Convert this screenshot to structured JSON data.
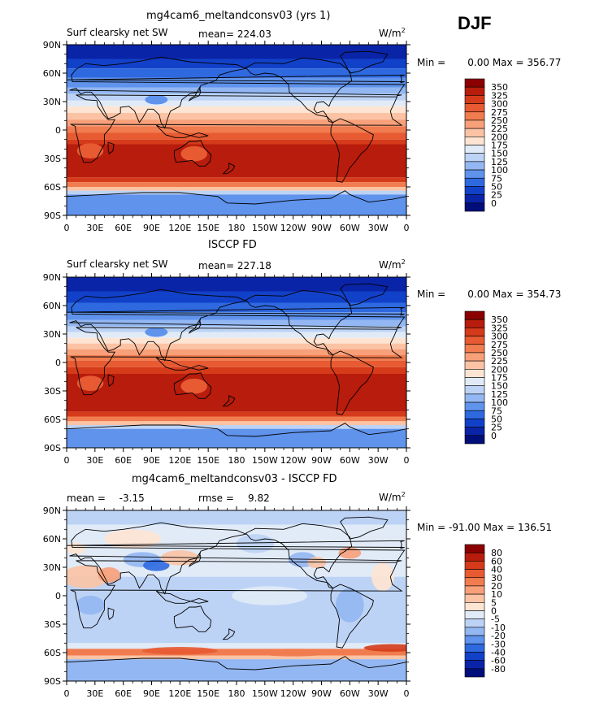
{
  "page": {
    "season": "DJF"
  },
  "panels": [
    {
      "title": "mg4cam6_meltandconsv03 (yrs 1)",
      "left_label": "Surf clearsky net SW",
      "stat_label": "mean=",
      "stat_value": "224.03",
      "units_base": "W/m",
      "units_sup": "2",
      "minmax_min_label": "Min =",
      "minmax_min": "0.00",
      "minmax_max_label": "Max =",
      "minmax_max": "356.77",
      "lat_labels": [
        "90N",
        "60N",
        "30N",
        "0",
        "30S",
        "60S",
        "90S"
      ],
      "lon_labels": [
        "0",
        "30E",
        "60E",
        "90E",
        "120E",
        "150E",
        "180",
        "150W",
        "120W",
        "90W",
        "60W",
        "30W",
        "0"
      ],
      "colorbar_labels": [
        "350",
        "325",
        "300",
        "275",
        "250",
        "225",
        "200",
        "175",
        "150",
        "125",
        "100",
        "75",
        "50",
        "25",
        "0"
      ],
      "colorbar_colors": [
        "#8b0000",
        "#b71c0c",
        "#d53b1a",
        "#e75a32",
        "#f07c4f",
        "#f7a07a",
        "#fbc3a4",
        "#fee4d2",
        "#e1ebf8",
        "#bdd3f5",
        "#93b7f2",
        "#5f93ec",
        "#2f69e0",
        "#1241c9",
        "#0a24a7",
        "#000e7a"
      ],
      "bands": [
        {
          "lat_from": 90,
          "lat_to": 75,
          "color": "#0a24a7"
        },
        {
          "lat_from": 75,
          "lat_to": 65,
          "color": "#1241c9"
        },
        {
          "lat_from": 65,
          "lat_to": 55,
          "color": "#2f69e0"
        },
        {
          "lat_from": 55,
          "lat_to": 45,
          "color": "#5f93ec"
        },
        {
          "lat_from": 45,
          "lat_to": 38,
          "color": "#93b7f2"
        },
        {
          "lat_from": 38,
          "lat_to": 31,
          "color": "#bdd3f5"
        },
        {
          "lat_from": 31,
          "lat_to": 25,
          "color": "#e1ebf8"
        },
        {
          "lat_from": 25,
          "lat_to": 18,
          "color": "#fee4d2"
        },
        {
          "lat_from": 18,
          "lat_to": 11,
          "color": "#fbc3a4"
        },
        {
          "lat_from": 11,
          "lat_to": 4,
          "color": "#f7a07a"
        },
        {
          "lat_from": 4,
          "lat_to": -3,
          "color": "#f07c4f"
        },
        {
          "lat_from": -3,
          "lat_to": -10,
          "color": "#e75a32"
        },
        {
          "lat_from": -10,
          "lat_to": -15,
          "color": "#d53b1a"
        },
        {
          "lat_from": -15,
          "lat_to": -50,
          "color": "#b71c0c"
        },
        {
          "lat_from": -50,
          "lat_to": -55,
          "color": "#d53b1a"
        },
        {
          "lat_from": -55,
          "lat_to": -60,
          "color": "#f07c4f"
        },
        {
          "lat_from": -60,
          "lat_to": -64,
          "color": "#fbc3a4"
        },
        {
          "lat_from": -64,
          "lat_to": -68,
          "color": "#bdd3f5"
        },
        {
          "lat_from": -68,
          "lat_to": -90,
          "color": "#5f93ec"
        }
      ]
    },
    {
      "title": "ISCCP FD",
      "left_label": "Surf clearsky net SW",
      "stat_label": "mean=",
      "stat_value": "227.18",
      "units_base": "W/m",
      "units_sup": "2",
      "minmax_min_label": "Min =",
      "minmax_min": "0.00",
      "minmax_max_label": "Max =",
      "minmax_max": "354.73",
      "lat_labels": [
        "90N",
        "60N",
        "30N",
        "0",
        "30S",
        "60S",
        "90S"
      ],
      "lon_labels": [
        "0",
        "30E",
        "60E",
        "90E",
        "120E",
        "150E",
        "180",
        "150W",
        "120W",
        "90W",
        "60W",
        "30W",
        "0"
      ],
      "colorbar_labels": [
        "350",
        "325",
        "300",
        "275",
        "250",
        "225",
        "200",
        "175",
        "150",
        "125",
        "100",
        "75",
        "50",
        "25",
        "0"
      ],
      "colorbar_colors": [
        "#8b0000",
        "#b71c0c",
        "#d53b1a",
        "#e75a32",
        "#f07c4f",
        "#f7a07a",
        "#fbc3a4",
        "#fee4d2",
        "#e1ebf8",
        "#bdd3f5",
        "#93b7f2",
        "#5f93ec",
        "#2f69e0",
        "#1241c9",
        "#0a24a7",
        "#000e7a"
      ],
      "bands": [
        {
          "lat_from": 90,
          "lat_to": 75,
          "color": "#0a24a7"
        },
        {
          "lat_from": 75,
          "lat_to": 63,
          "color": "#1241c9"
        },
        {
          "lat_from": 63,
          "lat_to": 53,
          "color": "#2f69e0"
        },
        {
          "lat_from": 53,
          "lat_to": 45,
          "color": "#5f93ec"
        },
        {
          "lat_from": 45,
          "lat_to": 38,
          "color": "#93b7f2"
        },
        {
          "lat_from": 38,
          "lat_to": 32,
          "color": "#bdd3f5"
        },
        {
          "lat_from": 32,
          "lat_to": 26,
          "color": "#e1ebf8"
        },
        {
          "lat_from": 26,
          "lat_to": 20,
          "color": "#fee4d2"
        },
        {
          "lat_from": 20,
          "lat_to": 14,
          "color": "#fbc3a4"
        },
        {
          "lat_from": 14,
          "lat_to": 8,
          "color": "#f7a07a"
        },
        {
          "lat_from": 8,
          "lat_to": 2,
          "color": "#f07c4f"
        },
        {
          "lat_from": 2,
          "lat_to": -5,
          "color": "#e75a32"
        },
        {
          "lat_from": -5,
          "lat_to": -12,
          "color": "#d53b1a"
        },
        {
          "lat_from": -12,
          "lat_to": -52,
          "color": "#b71c0c"
        },
        {
          "lat_from": -52,
          "lat_to": -57,
          "color": "#d53b1a"
        },
        {
          "lat_from": -57,
          "lat_to": -62,
          "color": "#f07c4f"
        },
        {
          "lat_from": -62,
          "lat_to": -66,
          "color": "#fbc3a4"
        },
        {
          "lat_from": -66,
          "lat_to": -70,
          "color": "#bdd3f5"
        },
        {
          "lat_from": -70,
          "lat_to": -90,
          "color": "#5f93ec"
        }
      ]
    },
    {
      "title": "mg4cam6_meltandconsv03 - ISCCP FD",
      "left_label": "mean =",
      "left_value": "-3.15",
      "stat_label": "rmse =",
      "stat_value": "9.82",
      "units_base": "W/m",
      "units_sup": "2",
      "minmax_min_label": "Min =",
      "minmax_min": "-91.00",
      "minmax_max_label": "Max =",
      "minmax_max": "136.51",
      "lat_labels": [
        "90N",
        "60N",
        "30N",
        "0",
        "30S",
        "60S",
        "90S"
      ],
      "lon_labels": [
        "0",
        "30E",
        "60E",
        "90E",
        "120E",
        "150E",
        "180",
        "150W",
        "120W",
        "90W",
        "60W",
        "30W",
        "0"
      ],
      "colorbar_labels": [
        "80",
        "60",
        "40",
        "30",
        "20",
        "10",
        "5",
        "0",
        "-5",
        "-10",
        "-20",
        "-30",
        "-40",
        "-60",
        "-80"
      ],
      "colorbar_colors": [
        "#8b0000",
        "#b71c0c",
        "#d53b1a",
        "#e75a32",
        "#f07c4f",
        "#f7a07a",
        "#fbc3a4",
        "#fee4d2",
        "#e1ebf8",
        "#bdd3f5",
        "#93b7f2",
        "#5f93ec",
        "#2f69e0",
        "#1241c9",
        "#0a24a7",
        "#000e7a"
      ],
      "bands": [
        {
          "lat_from": 90,
          "lat_to": 75,
          "color": "#bdd3f5"
        },
        {
          "lat_from": 75,
          "lat_to": 60,
          "color": "#e1ebf8"
        },
        {
          "lat_from": 60,
          "lat_to": 20,
          "color": "#e1ebf8"
        },
        {
          "lat_from": 20,
          "lat_to": -50,
          "color": "#bdd3f5"
        },
        {
          "lat_from": -50,
          "lat_to": -56,
          "color": "#e1ebf8"
        },
        {
          "lat_from": -56,
          "lat_to": -63,
          "color": "#f07c4f"
        },
        {
          "lat_from": -63,
          "lat_to": -67,
          "color": "#fbc3a4"
        },
        {
          "lat_from": -67,
          "lat_to": -90,
          "color": "#93b7f2"
        }
      ]
    }
  ]
}
